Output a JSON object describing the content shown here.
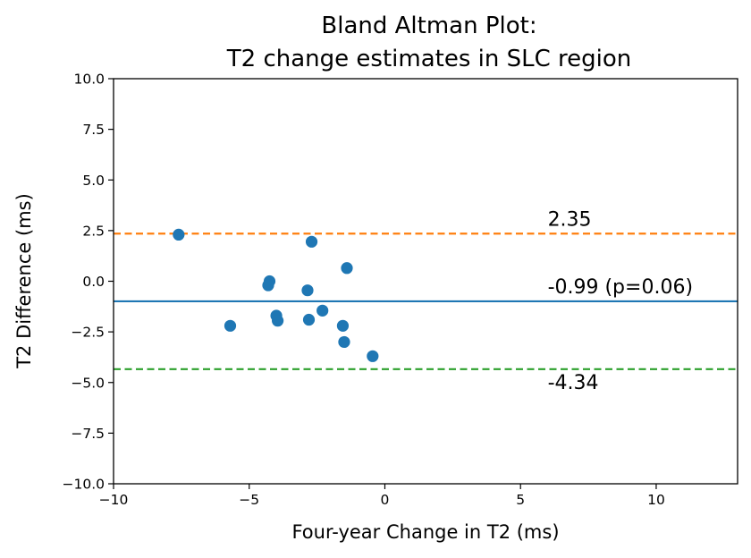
{
  "chart_data": {
    "type": "scatter",
    "title_line1": "Bland Altman Plot:",
    "title_line2": "T2 change estimates in SLC region",
    "xlabel": "Four-year Change in T2 (ms)",
    "ylabel": "T2 Difference (ms)",
    "xlim": [
      -10,
      13
    ],
    "ylim": [
      -10,
      10
    ],
    "x_ticks": [
      -10,
      -5,
      0,
      5,
      10
    ],
    "x_tick_labels": [
      "−10",
      "−5",
      "0",
      "5",
      "10"
    ],
    "y_ticks": [
      10,
      7.5,
      5,
      2.5,
      0,
      -2.5,
      -5,
      -7.5,
      -10
    ],
    "y_tick_labels": [
      "10.0",
      "7.5",
      "5.0",
      "2.5",
      "0.0",
      "−2.5",
      "−5.0",
      "−7.5",
      "−10.0"
    ],
    "grid": false,
    "points": [
      {
        "x": -7.6,
        "y": 2.3
      },
      {
        "x": -5.7,
        "y": -2.2
      },
      {
        "x": -4.25,
        "y": 0.0
      },
      {
        "x": -4.3,
        "y": -0.2
      },
      {
        "x": -4.0,
        "y": -1.7
      },
      {
        "x": -3.95,
        "y": -1.95
      },
      {
        "x": -2.85,
        "y": -0.45
      },
      {
        "x": -2.8,
        "y": -1.9
      },
      {
        "x": -2.7,
        "y": 1.95
      },
      {
        "x": -2.3,
        "y": -1.45
      },
      {
        "x": -1.55,
        "y": -2.2
      },
      {
        "x": -1.5,
        "y": -3.0
      },
      {
        "x": -1.4,
        "y": 0.65
      },
      {
        "x": -0.45,
        "y": -3.7
      }
    ],
    "point_color": "#1f77b4",
    "mean_line": {
      "y": -0.99,
      "color": "#1f77b4",
      "label": "-0.99 (p=0.06)",
      "label_x": 6
    },
    "upper_limit": {
      "y": 2.35,
      "color": "#ff7f0e",
      "label": "2.35",
      "label_x": 6
    },
    "lower_limit": {
      "y": -4.34,
      "color": "#2ca02c",
      "label": "-4.34",
      "label_x": 6
    }
  }
}
